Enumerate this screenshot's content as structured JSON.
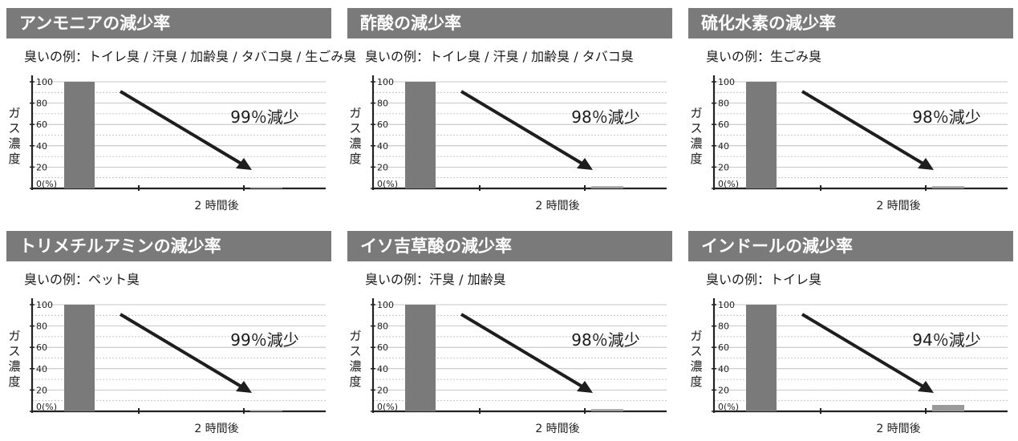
{
  "panels": [
    {
      "title": "アンモニアの減少率",
      "example_prefix": "臭いの例：",
      "example": "トイレ臭 / 汗臭 / 加齢臭 / タバコ臭 / 生ごみ臭",
      "reduction": "99％減少"
    },
    {
      "title": "酢酸の減少率",
      "example_prefix": "臭いの例：",
      "example": "トイレ臭 / 汗臭 / 加齢臭 / タバコ臭",
      "reduction": "98％減少"
    },
    {
      "title": "硫化水素の減少率",
      "example_prefix": "臭いの例：",
      "example": "生ごみ臭",
      "reduction": "98％減少"
    },
    {
      "title": "トリメチルアミンの減少率",
      "example_prefix": "臭いの例：",
      "example": "ペット臭",
      "reduction": "99％減少"
    },
    {
      "title": "イソ吉草酸の減少率",
      "example_prefix": "臭いの例：",
      "example": "汗臭 / 加齢臭",
      "reduction": "98％減少"
    },
    {
      "title": "インドールの減少率",
      "example_prefix": "臭いの例：",
      "example": "トイレ臭",
      "reduction": "94％減少"
    }
  ],
  "chart_data": [
    {
      "type": "bar",
      "title": "アンモニアの減少率",
      "ylabel": "ガス濃度",
      "categories": [
        "",
        "2 時間後"
      ],
      "values": [
        100,
        1
      ],
      "ylim": [
        0,
        100
      ],
      "yticks": [
        "100",
        "80",
        "60",
        "40",
        "20",
        "0(%)"
      ],
      "annotation": "99％減少",
      "grid": true
    },
    {
      "type": "bar",
      "title": "酢酸の減少率",
      "ylabel": "ガス濃度",
      "categories": [
        "",
        "2 時間後"
      ],
      "values": [
        100,
        2
      ],
      "ylim": [
        0,
        100
      ],
      "yticks": [
        "100",
        "80",
        "60",
        "40",
        "20",
        "0(%)"
      ],
      "annotation": "98％減少",
      "grid": true
    },
    {
      "type": "bar",
      "title": "硫化水素の減少率",
      "ylabel": "ガス濃度",
      "categories": [
        "",
        "2 時間後"
      ],
      "values": [
        100,
        2
      ],
      "ylim": [
        0,
        100
      ],
      "yticks": [
        "100",
        "80",
        "60",
        "40",
        "20",
        "0(%)"
      ],
      "annotation": "98％減少",
      "grid": true
    },
    {
      "type": "bar",
      "title": "トリメチルアミンの減少率",
      "ylabel": "ガス濃度",
      "categories": [
        "",
        "2 時間後"
      ],
      "values": [
        100,
        1
      ],
      "ylim": [
        0,
        100
      ],
      "yticks": [
        "100",
        "80",
        "60",
        "40",
        "20",
        "0(%)"
      ],
      "annotation": "99％減少",
      "grid": true
    },
    {
      "type": "bar",
      "title": "イソ吉草酸の減少率",
      "ylabel": "ガス濃度",
      "categories": [
        "",
        "2 時間後"
      ],
      "values": [
        100,
        2
      ],
      "ylim": [
        0,
        100
      ],
      "yticks": [
        "100",
        "80",
        "60",
        "40",
        "20",
        "0(%)"
      ],
      "annotation": "98％減少",
      "grid": true
    },
    {
      "type": "bar",
      "title": "インドールの減少率",
      "ylabel": "ガス濃度",
      "categories": [
        "",
        "2 時間後"
      ],
      "values": [
        100,
        6
      ],
      "ylim": [
        0,
        100
      ],
      "yticks": [
        "100",
        "80",
        "60",
        "40",
        "20",
        "0(%)"
      ],
      "annotation": "94％減少",
      "grid": true
    }
  ],
  "colors": {
    "title_bg": "#7a7a7a",
    "bar": "#7a7a7a",
    "arrow": "#1e1e1e",
    "grid": "#b5b5b5"
  }
}
